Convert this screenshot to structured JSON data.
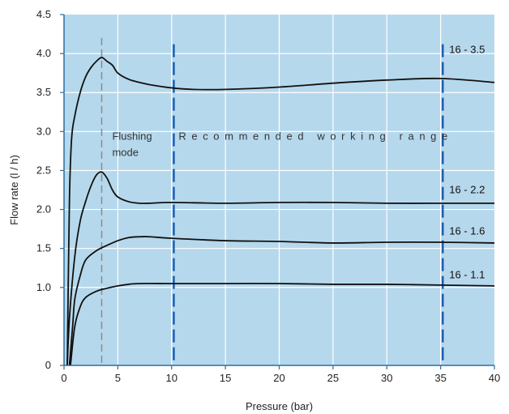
{
  "chart_data": {
    "type": "line",
    "xlabel": "Pressure (bar)",
    "ylabel": "Flow  rate (l / h)",
    "xlim": [
      0,
      40
    ],
    "ylim": [
      0,
      4.5
    ],
    "x_ticks": [
      "0",
      "5",
      "10",
      "15",
      "20",
      "25",
      "30",
      "35",
      "40"
    ],
    "y_ticks": [
      "0",
      "1.0",
      "1.5",
      "2.0",
      "2.5",
      "3.0",
      "3.5",
      "4.0",
      "4.5"
    ],
    "y_tick_values": [
      0,
      1.0,
      1.5,
      2.0,
      2.5,
      3.0,
      3.5,
      4.0,
      4.5
    ],
    "grid": true,
    "background_color": "#b6d8ec",
    "series": [
      {
        "name": "16 - 3.5",
        "points": [
          [
            0.3,
            0
          ],
          [
            0.5,
            2.1
          ],
          [
            0.7,
            2.9
          ],
          [
            1,
            3.2
          ],
          [
            1.5,
            3.5
          ],
          [
            2,
            3.7
          ],
          [
            2.5,
            3.82
          ],
          [
            3,
            3.9
          ],
          [
            3.5,
            3.95
          ],
          [
            4,
            3.9
          ],
          [
            4.5,
            3.85
          ],
          [
            5,
            3.75
          ],
          [
            6,
            3.67
          ],
          [
            7,
            3.63
          ],
          [
            8,
            3.6
          ],
          [
            10,
            3.56
          ],
          [
            12,
            3.54
          ],
          [
            15,
            3.54
          ],
          [
            20,
            3.57
          ],
          [
            25,
            3.62
          ],
          [
            30,
            3.66
          ],
          [
            35,
            3.68
          ],
          [
            40,
            3.63
          ]
        ]
      },
      {
        "name": "16 - 2.2",
        "points": [
          [
            0.3,
            0
          ],
          [
            0.5,
            0.6
          ],
          [
            1,
            1.4
          ],
          [
            1.5,
            1.85
          ],
          [
            2,
            2.1
          ],
          [
            2.5,
            2.3
          ],
          [
            3,
            2.44
          ],
          [
            3.5,
            2.48
          ],
          [
            4,
            2.4
          ],
          [
            4.5,
            2.25
          ],
          [
            5,
            2.16
          ],
          [
            6,
            2.1
          ],
          [
            7,
            2.08
          ],
          [
            8,
            2.08
          ],
          [
            10,
            2.09
          ],
          [
            15,
            2.08
          ],
          [
            20,
            2.09
          ],
          [
            25,
            2.09
          ],
          [
            30,
            2.08
          ],
          [
            35,
            2.08
          ],
          [
            40,
            2.08
          ]
        ]
      },
      {
        "name": "16 - 1.6",
        "points": [
          [
            0.5,
            0
          ],
          [
            0.8,
            0.5
          ],
          [
            1,
            0.85
          ],
          [
            1.5,
            1.15
          ],
          [
            2,
            1.35
          ],
          [
            3,
            1.47
          ],
          [
            4,
            1.54
          ],
          [
            5,
            1.6
          ],
          [
            6,
            1.64
          ],
          [
            7,
            1.65
          ],
          [
            8,
            1.65
          ],
          [
            10,
            1.63
          ],
          [
            15,
            1.6
          ],
          [
            20,
            1.59
          ],
          [
            25,
            1.57
          ],
          [
            30,
            1.58
          ],
          [
            35,
            1.58
          ],
          [
            40,
            1.57
          ]
        ]
      },
      {
        "name": "16 - 1.1",
        "points": [
          [
            0.6,
            0
          ],
          [
            1,
            0.5
          ],
          [
            1.5,
            0.75
          ],
          [
            2,
            0.87
          ],
          [
            3,
            0.95
          ],
          [
            4,
            0.99
          ],
          [
            5,
            1.02
          ],
          [
            6,
            1.04
          ],
          [
            7,
            1.05
          ],
          [
            10,
            1.05
          ],
          [
            15,
            1.05
          ],
          [
            20,
            1.05
          ],
          [
            25,
            1.04
          ],
          [
            30,
            1.04
          ],
          [
            35,
            1.03
          ],
          [
            40,
            1.02
          ]
        ]
      }
    ],
    "series_label_y": [
      4.05,
      2.25,
      1.72,
      1.16
    ],
    "series_label_x": 35.8,
    "flushing_line_x": 3.5,
    "range_lines_x": [
      10.2,
      35.2
    ],
    "annotations": {
      "flushing": [
        "Flushing",
        "mode"
      ],
      "range": "Recommended working range"
    },
    "colors": {
      "curve": "#111111",
      "grid": "#ffffff",
      "range_line": "#1a5fb4",
      "flushing_line": "#8a8a8a",
      "axis": "#2b6e9e"
    }
  }
}
